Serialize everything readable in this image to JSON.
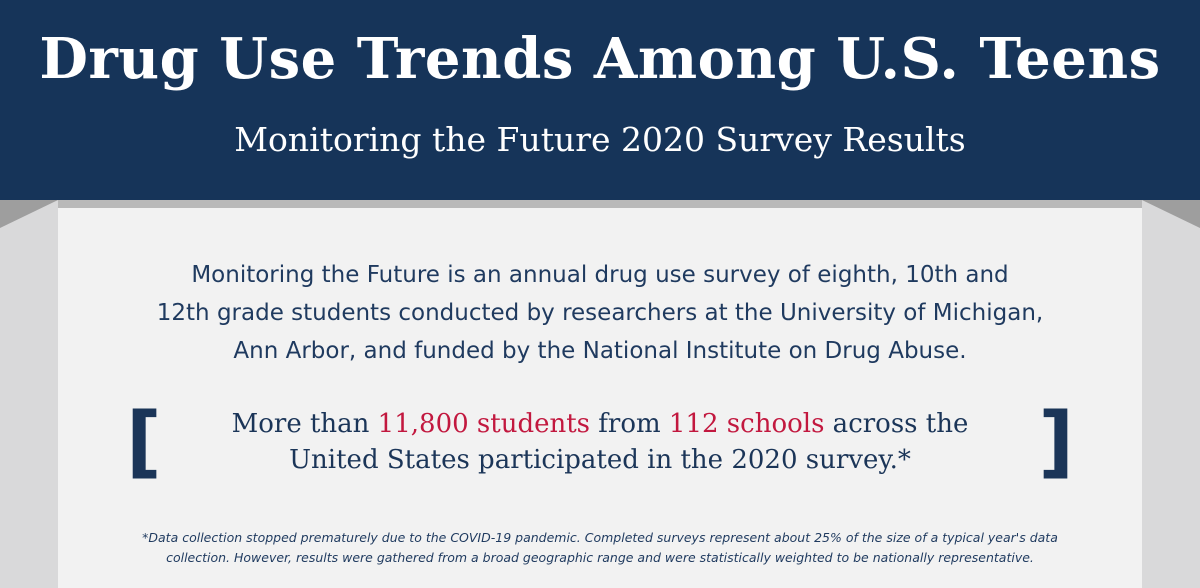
{
  "header": {
    "title": "Drug Use Trends Among U.S. Teens",
    "subtitle": "Monitoring the Future 2020 Survey Results"
  },
  "intro": {
    "line1": "Monitoring the Future is an annual drug use survey of eighth, 10th and",
    "line2": "12th grade students conducted by researchers at the University of Michigan,",
    "line3": "Ann Arbor, and funded by the National Institute on Drug Abuse."
  },
  "callout": {
    "p1": "More than ",
    "students": "11,800 students",
    "p2": " from ",
    "schools": "112 schools",
    "p3": " across the",
    "line2": "United States participated in the 2020 survey.*",
    "bracket_left": "[",
    "bracket_right": "]"
  },
  "footnote": {
    "line1": "*Data collection stopped prematurely due to the COVID-19 pandemic. Completed surveys represent about 25% of the size of a typical year's data",
    "line2": "collection. However, results were gathered from a broad geographic range and were statistically weighted to be nationally representative."
  },
  "colors": {
    "navy": "#163459",
    "accent": "#c2183f"
  }
}
